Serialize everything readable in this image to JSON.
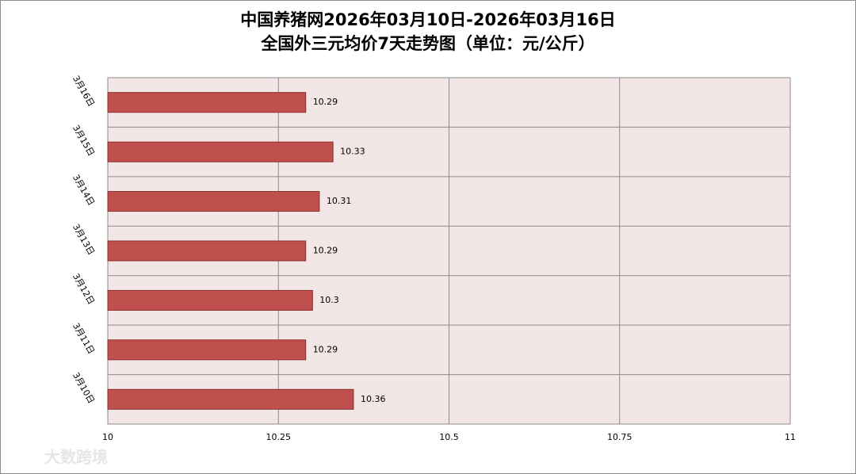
{
  "chart_data": {
    "type": "barh",
    "title": "中国养猪网2026年03月10日-2026年03月16日",
    "subtitle": "全国外三元均价7天走势图（单位：元/公斤）",
    "categories": [
      "3月10日",
      "3月11日",
      "3月12日",
      "3月13日",
      "3月14日",
      "3月15日",
      "3月16日"
    ],
    "values": [
      10.36,
      10.29,
      10.3,
      10.29,
      10.31,
      10.33,
      10.29
    ],
    "color": "#c0504d",
    "xlim": [
      10,
      11
    ],
    "xticks": [
      10,
      10.25,
      10.5,
      10.75,
      11
    ],
    "grid": true
  },
  "watermark": "大数跨境"
}
